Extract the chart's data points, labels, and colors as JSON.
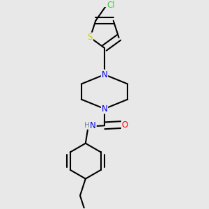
{
  "background_color": "#e8e8e8",
  "bond_color": "#000000",
  "bond_width": 1.5,
  "atom_colors": {
    "N": "#0000ee",
    "O": "#ff0000",
    "S": "#cccc00",
    "Cl": "#33cc33",
    "H": "#778899",
    "C": "#000000"
  },
  "font_size": 8.5,
  "fig_size": [
    3.0,
    3.0
  ],
  "dpi": 100,
  "xlim": [
    0.0,
    1.0
  ],
  "ylim": [
    0.0,
    1.0
  ]
}
